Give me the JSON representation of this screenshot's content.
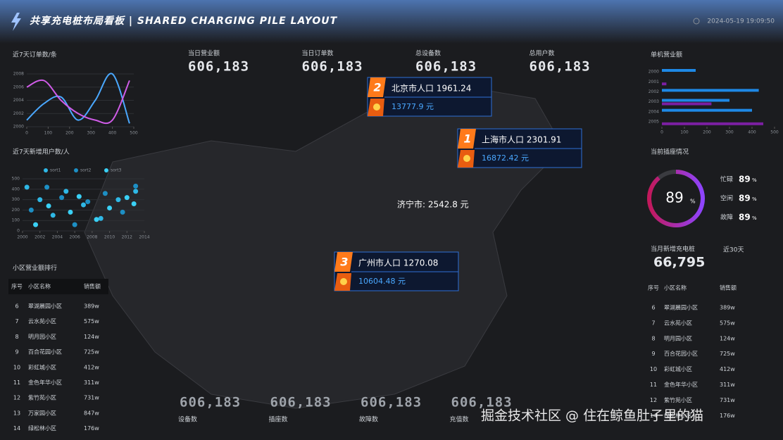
{
  "header": {
    "title": "共享充电桩布局看板 | SHARED CHARGING PILE LAYOUT",
    "datetime": "2024-05-19 19:09:50"
  },
  "top_stats": [
    {
      "label": "当日营业额",
      "value": "606,183"
    },
    {
      "label": "当日订单数",
      "value": "606,183"
    },
    {
      "label": "总设备数",
      "value": "606,183"
    },
    {
      "label": "总用户数",
      "value": "606,183"
    }
  ],
  "bottom_stats": [
    {
      "label": "设备数",
      "value": "606,183"
    },
    {
      "label": "插座数",
      "value": "606,183"
    },
    {
      "label": "故障数",
      "value": "606,183"
    },
    {
      "label": "充值数",
      "value": "606,183"
    }
  ],
  "order_chart": {
    "type": "line",
    "title": "近7天订单数/条",
    "x": [
      0,
      80,
      160,
      240,
      320,
      400,
      480
    ],
    "xlim": [
      0,
      500
    ],
    "xticks": [
      0,
      100,
      200,
      300,
      400,
      500
    ],
    "ylim": [
      2000,
      2008
    ],
    "yticks": [
      2000,
      2002,
      2004,
      2006,
      2008
    ],
    "series": [
      {
        "color": "#4aa8ff",
        "values": [
          2001,
          2003.5,
          2004.5,
          2001,
          2004,
          2008,
          2000.5
        ]
      },
      {
        "color": "#d05ce8",
        "values": [
          2006,
          2007,
          2004,
          2002,
          2001,
          2001,
          2007
        ]
      }
    ]
  },
  "user_chart": {
    "type": "scatter",
    "title": "近7天新增用户数/人",
    "xlim": [
      2000,
      2014
    ],
    "xticks": [
      2000,
      2002,
      2004,
      2006,
      2008,
      2010,
      2012,
      2014
    ],
    "ylim": [
      0,
      500
    ],
    "yticks": [
      0,
      100,
      200,
      300,
      400,
      500
    ],
    "series": [
      {
        "name": "sort1",
        "color": "#2fb8e6",
        "x": [
          2000.5,
          2002,
          2003.5,
          2005,
          2007,
          2009,
          2011,
          2013
        ],
        "y": [
          420,
          300,
          150,
          380,
          250,
          120,
          300,
          380
        ]
      },
      {
        "name": "sort2",
        "color": "#1d8fc4",
        "x": [
          2001,
          2002.8,
          2004.5,
          2006,
          2007.5,
          2009.5,
          2011.5,
          2013
        ],
        "y": [
          200,
          420,
          320,
          60,
          280,
          360,
          180,
          430
        ]
      },
      {
        "name": "sort3",
        "color": "#3ad0f5",
        "x": [
          2001.5,
          2003,
          2005.5,
          2006.5,
          2008.5,
          2010,
          2012,
          2012.8
        ],
        "y": [
          60,
          240,
          180,
          330,
          110,
          220,
          320,
          260
        ]
      }
    ]
  },
  "rank_title": "小区营业额排行",
  "left_table": {
    "headers": [
      "序号",
      "小区名称",
      "销售额"
    ],
    "rows": [
      [
        "6",
        "翠湖晨园小区",
        "389w"
      ],
      [
        "7",
        "云水苑小区",
        "575w"
      ],
      [
        "8",
        "明月园小区",
        "124w"
      ],
      [
        "9",
        "百合花园小区",
        "725w"
      ],
      [
        "10",
        "彩虹城小区",
        "412w"
      ],
      [
        "11",
        "金色年华小区",
        "311w"
      ],
      [
        "12",
        "紫竹苑小区",
        "731w"
      ],
      [
        "13",
        "万家园小区",
        "847w"
      ],
      [
        "14",
        "绿松林小区",
        "176w"
      ]
    ]
  },
  "revenue_chart": {
    "type": "bar",
    "title": "单机营业额",
    "categories": [
      "2000",
      "2001",
      "2002",
      "2003",
      "2004",
      "2005"
    ],
    "xlim": [
      0,
      500
    ],
    "xticks": [
      0,
      100,
      200,
      300,
      400,
      500
    ],
    "series": [
      {
        "color": "#1e88e5",
        "values": [
          150,
          0,
          430,
          300,
          400,
          0
        ]
      },
      {
        "color": "#7b1fa2",
        "values": [
          0,
          20,
          0,
          220,
          0,
          450
        ]
      }
    ]
  },
  "socket_status": {
    "title": "当前插座情况",
    "gauge": {
      "value": 89,
      "unit": "%"
    },
    "items": [
      {
        "label": "忙碌",
        "value": "89",
        "unit": "%"
      },
      {
        "label": "空闲",
        "value": "89",
        "unit": "%"
      },
      {
        "label": "故障",
        "value": "89",
        "unit": "%"
      }
    ]
  },
  "monthly_new": {
    "label": "当月新增充电桩",
    "value": "66,795",
    "period": "近30天"
  },
  "right_table": {
    "headers": [
      "序号",
      "小区名称",
      "销售额"
    ],
    "rows": [
      [
        "6",
        "翠湖晨园小区",
        "389w"
      ],
      [
        "7",
        "云水苑小区",
        "575w"
      ],
      [
        "8",
        "明月园小区",
        "124w"
      ],
      [
        "9",
        "百合花园小区",
        "725w"
      ],
      [
        "10",
        "彩虹城小区",
        "412w"
      ],
      [
        "11",
        "金色年华小区",
        "311w"
      ],
      [
        "12",
        "紫竹苑小区",
        "731w"
      ],
      [
        "14",
        "绿松林小区",
        "176w"
      ]
    ]
  },
  "callouts": [
    {
      "rank": "2",
      "title": "北京市人口 1961.24",
      "value": "13777.9 元"
    },
    {
      "rank": "1",
      "title": "上海市人口 2301.91",
      "value": "16872.42 元"
    },
    {
      "rank": "3",
      "title": "广州市人口 1270.08",
      "value": "10604.48 元"
    }
  ],
  "map_label": "济宁市: 2542.8 元",
  "watermark": "掘金技术社区 @ 住在鲸鱼肚子里的猫"
}
